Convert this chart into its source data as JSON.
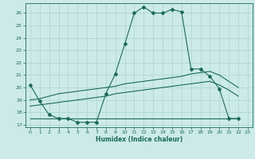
{
  "bg_color": "#cceae7",
  "grid_color": "#aad4d0",
  "line_color": "#1a6b5a",
  "xlabel": "Humidex (Indice chaleur)",
  "ylim": [
    16.8,
    26.8
  ],
  "xlim": [
    -0.5,
    23.5
  ],
  "yticks": [
    17,
    18,
    19,
    20,
    21,
    22,
    23,
    24,
    25,
    26
  ],
  "xticks": [
    0,
    1,
    2,
    3,
    4,
    5,
    6,
    7,
    8,
    9,
    10,
    11,
    12,
    13,
    14,
    15,
    16,
    17,
    18,
    19,
    20,
    21,
    22,
    23
  ],
  "line1_x": [
    0,
    1,
    2,
    3,
    4,
    5,
    6,
    7,
    8,
    9,
    10,
    11,
    12,
    13,
    14,
    15,
    16,
    17,
    18,
    19,
    20,
    21,
    22
  ],
  "line1_y": [
    20.2,
    18.9,
    17.8,
    17.5,
    17.5,
    17.2,
    17.2,
    17.2,
    19.5,
    21.1,
    23.5,
    26.0,
    26.5,
    26.0,
    26.0,
    26.3,
    26.1,
    21.5,
    21.5,
    20.9,
    19.9,
    17.5,
    17.5
  ],
  "line2_x": [
    0,
    1,
    2,
    3,
    4,
    5,
    6,
    7,
    8,
    9,
    10,
    11,
    12,
    13,
    14,
    15,
    16,
    17,
    18,
    19,
    20,
    21,
    22
  ],
  "line2_y": [
    17.5,
    17.5,
    17.5,
    17.5,
    17.5,
    17.5,
    17.5,
    17.5,
    17.5,
    17.5,
    17.5,
    17.5,
    17.5,
    17.5,
    17.5,
    17.5,
    17.5,
    17.5,
    17.5,
    17.5,
    17.5,
    17.5,
    17.5
  ],
  "line3_x": [
    0,
    1,
    2,
    3,
    4,
    5,
    6,
    7,
    8,
    9,
    10,
    11,
    12,
    13,
    14,
    15,
    16,
    17,
    18,
    19,
    20,
    21,
    22
  ],
  "line3_y": [
    19.0,
    19.1,
    19.3,
    19.5,
    19.6,
    19.7,
    19.8,
    19.9,
    20.0,
    20.1,
    20.3,
    20.4,
    20.5,
    20.6,
    20.7,
    20.8,
    20.9,
    21.1,
    21.2,
    21.3,
    21.0,
    20.5,
    20.0
  ],
  "line4_x": [
    0,
    1,
    2,
    3,
    4,
    5,
    6,
    7,
    8,
    9,
    10,
    11,
    12,
    13,
    14,
    15,
    16,
    17,
    18,
    19,
    20,
    21,
    22
  ],
  "line4_y": [
    18.5,
    18.6,
    18.7,
    18.8,
    18.9,
    19.0,
    19.1,
    19.2,
    19.3,
    19.5,
    19.6,
    19.7,
    19.8,
    19.9,
    20.0,
    20.1,
    20.2,
    20.3,
    20.4,
    20.5,
    20.2,
    19.8,
    19.3
  ]
}
